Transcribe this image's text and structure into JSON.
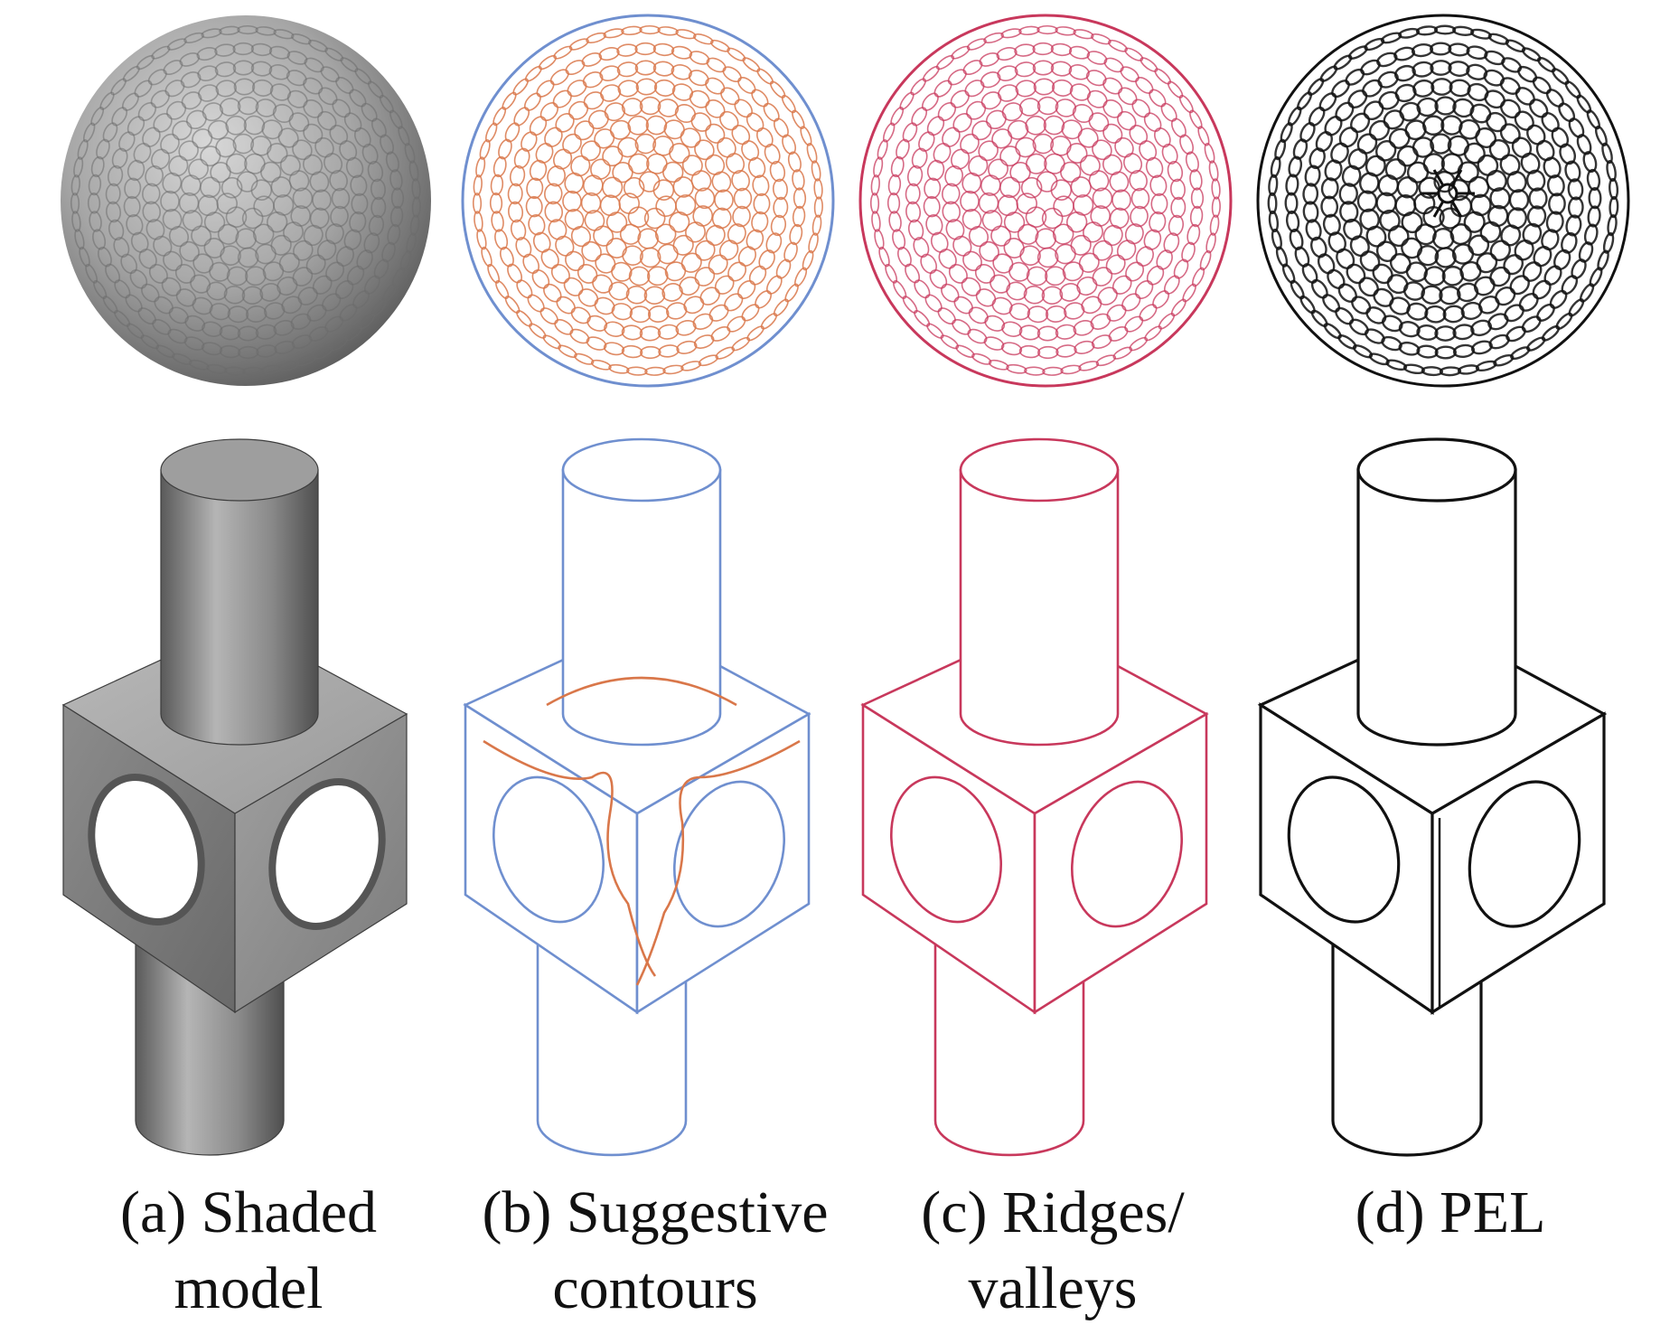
{
  "figure": {
    "panels": [
      {
        "id": "a",
        "caption_line1": "(a) Shaded",
        "caption_line2": "model",
        "style": "shaded",
        "stroke": "#444444"
      },
      {
        "id": "b",
        "caption_line1": "(b) Suggestive",
        "caption_line2": "contours",
        "style": "suggestive",
        "stroke": "#6f8fcf",
        "stroke2": "#d9774a"
      },
      {
        "id": "c",
        "caption_line1": "(c) Ridges/",
        "caption_line2": "valleys",
        "style": "ridges",
        "stroke": "#c8385c",
        "stroke2": "#d76d8a"
      },
      {
        "id": "d",
        "caption_line1": "(d) PEL",
        "caption_line2": "",
        "style": "pel",
        "stroke": "#111111"
      }
    ],
    "objects": [
      "golf-ball-dimpled-sphere",
      "cylinder-through-cube-with-holes"
    ]
  }
}
